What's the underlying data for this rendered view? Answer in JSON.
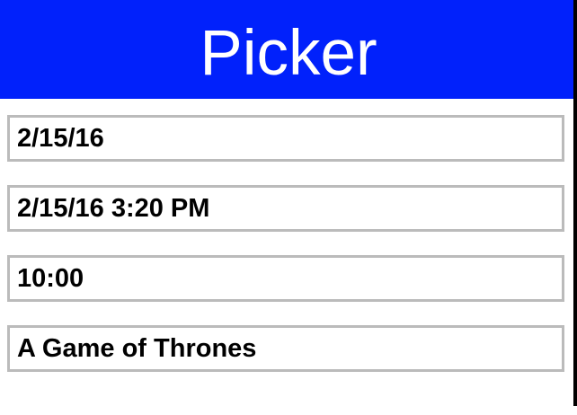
{
  "header": {
    "title": "Picker",
    "background_color": "#0121fb",
    "text_color": "#ffffff"
  },
  "fields": [
    {
      "name": "date-picker",
      "value": "2/15/16"
    },
    {
      "name": "datetime-picker",
      "value": "2/15/16 3:20 PM"
    },
    {
      "name": "time-picker",
      "value": "10:00"
    },
    {
      "name": "item-picker",
      "value": "A Game of Thrones"
    }
  ],
  "colors": {
    "field_border": "#bbbbbb",
    "field_text": "#000000",
    "page_background": "#ffffff",
    "right_edge": "#000000"
  }
}
